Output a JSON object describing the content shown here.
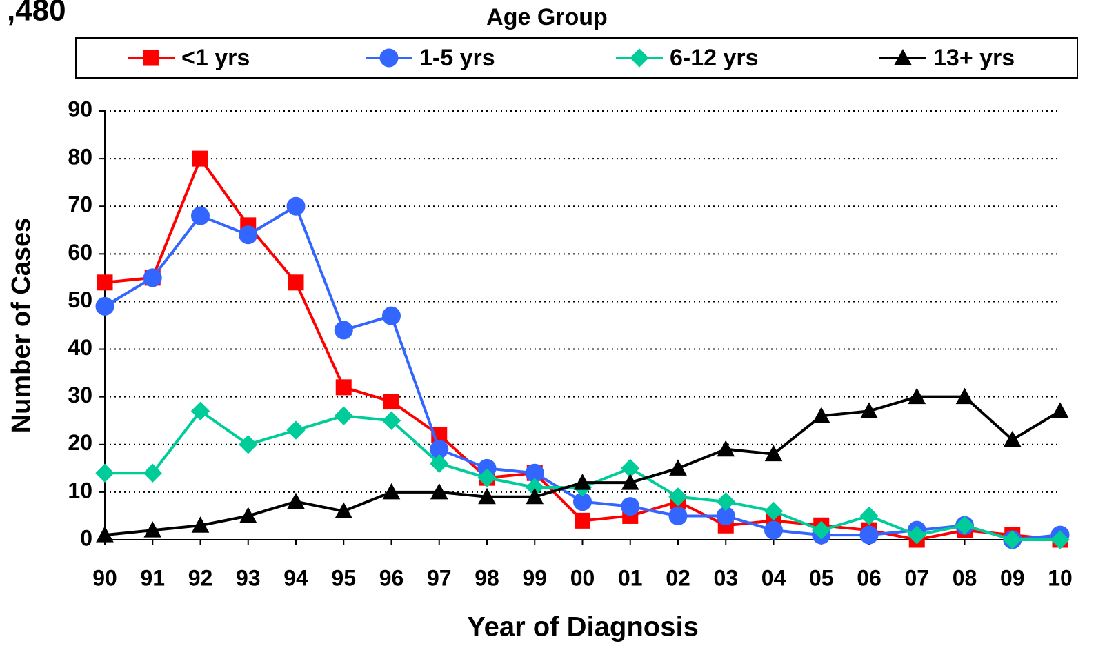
{
  "chart_data": {
    "type": "line",
    "annotation": ",480",
    "legend_title": "Age Group",
    "xlabel": "Year of Diagnosis",
    "ylabel": "Number of Cases",
    "categories": [
      "90",
      "91",
      "92",
      "93",
      "94",
      "95",
      "96",
      "97",
      "98",
      "99",
      "00",
      "01",
      "02",
      "03",
      "04",
      "05",
      "06",
      "07",
      "08",
      "09",
      "10"
    ],
    "series": [
      {
        "name": "<1 yrs",
        "color": "#ff0000",
        "marker": "square",
        "values": [
          54,
          55,
          80,
          66,
          54,
          32,
          29,
          22,
          13,
          14,
          4,
          5,
          8,
          3,
          4,
          3,
          2,
          0,
          2,
          1,
          0
        ]
      },
      {
        "name": "1-5 yrs",
        "color": "#3366ff",
        "marker": "circle",
        "values": [
          49,
          55,
          68,
          64,
          70,
          44,
          47,
          19,
          15,
          14,
          8,
          7,
          5,
          5,
          2,
          1,
          1,
          2,
          3,
          0,
          1
        ]
      },
      {
        "name": "6-12 yrs",
        "color": "#00cc99",
        "marker": "diamond",
        "values": [
          14,
          14,
          27,
          20,
          23,
          26,
          25,
          16,
          13,
          11,
          11,
          15,
          9,
          8,
          6,
          2,
          5,
          1,
          3,
          0,
          0
        ]
      },
      {
        "name": "13+ yrs",
        "color": "#000000",
        "marker": "triangle",
        "values": [
          1,
          2,
          3,
          5,
          8,
          6,
          10,
          10,
          9,
          9,
          12,
          12,
          15,
          19,
          18,
          26,
          27,
          30,
          30,
          21,
          27
        ]
      }
    ],
    "ylim": [
      0,
      90
    ],
    "yticks": [
      0,
      10,
      20,
      30,
      40,
      50,
      60,
      70,
      80,
      90
    ],
    "grid": true
  }
}
